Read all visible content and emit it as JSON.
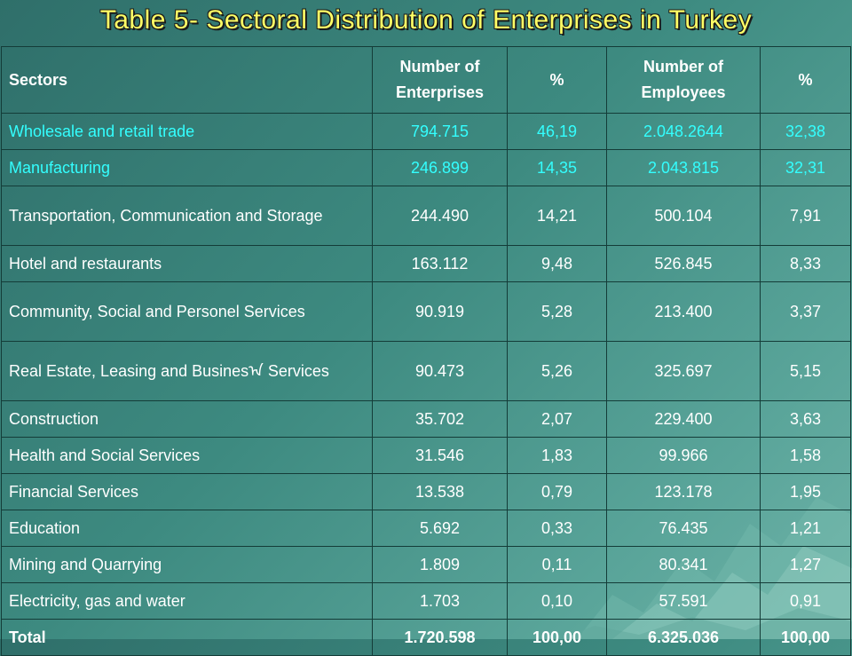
{
  "title": "Table 5-  Sectoral Distribution of Enterprises in Turkey",
  "colors": {
    "background": "#3d8a80",
    "title": "#ffff66",
    "highlight_rows": "#33ffff",
    "text": "#ffffff",
    "grid": "#143c38"
  },
  "table": {
    "headers": [
      "Sectors",
      "Number of Enterprises",
      "%",
      "Number of Employees",
      "%"
    ],
    "rows": [
      {
        "sector": "Wholesale and retail trade",
        "enterprises": "794.715",
        "ent_pct": "46,19",
        "employees": "2.048.2644",
        "emp_pct": "32,38"
      },
      {
        "sector": "Manufacturing",
        "enterprises": "246.899",
        "ent_pct": "14,35",
        "employees": "2.043.815",
        "emp_pct": "32,31"
      },
      {
        "sector": "Transportation, Communication and Storage",
        "enterprises": "244.490",
        "ent_pct": "14,21",
        "employees": "500.104",
        "emp_pct": "7,91"
      },
      {
        "sector": "Hotel and restaurants",
        "enterprises": "163.112",
        "ent_pct": "9,48",
        "employees": "526.845",
        "emp_pct": "8,33"
      },
      {
        "sector": "Community, Social and Personel Services",
        "enterprises": "90.919",
        "ent_pct": "5,28",
        "employees": "213.400",
        "emp_pct": "3,37"
      },
      {
        "sector": "Real Estate, Leasing and Businesᠠ Services",
        "enterprises": "90.473",
        "ent_pct": "5,26",
        "employees": "325.697",
        "emp_pct": "5,15"
      },
      {
        "sector": "Construction",
        "enterprises": "35.702",
        "ent_pct": "2,07",
        "employees": "229.400",
        "emp_pct": "3,63"
      },
      {
        "sector": "Health and Social Services",
        "enterprises": "31.546",
        "ent_pct": "1,83",
        "employees": "99.966",
        "emp_pct": "1,58"
      },
      {
        "sector": "Financial Services",
        "enterprises": "13.538",
        "ent_pct": "0,79",
        "employees": "123.178",
        "emp_pct": "1,95"
      },
      {
        "sector": "Education",
        "enterprises": "5.692",
        "ent_pct": "0,33",
        "employees": "76.435",
        "emp_pct": "1,21"
      },
      {
        "sector": "Mining and Quarrying",
        "enterprises": "1.809",
        "ent_pct": "0,11",
        "employees": "80.341",
        "emp_pct": "1,27"
      },
      {
        "sector": "Electricity, gas and water",
        "enterprises": "1.703",
        "ent_pct": "0,10",
        "employees": "57.591",
        "emp_pct": "0,91"
      }
    ],
    "total": {
      "label": "Total",
      "enterprises": "1.720.598",
      "ent_pct": "100,00",
      "employees": "6.325.036",
      "emp_pct": "100,00"
    }
  }
}
